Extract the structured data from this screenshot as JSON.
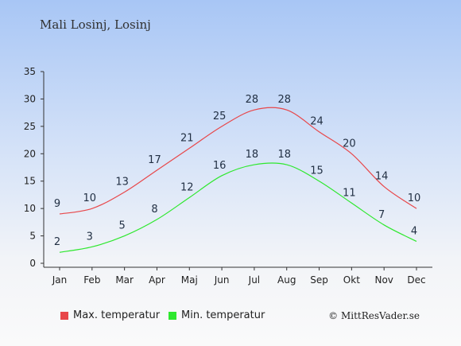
{
  "title": "Mali Losinj, Losinj",
  "credit": "© MittResVader.se",
  "chart_data": {
    "type": "line",
    "categories": [
      "Jan",
      "Feb",
      "Mar",
      "Apr",
      "Maj",
      "Jun",
      "Jul",
      "Aug",
      "Sep",
      "Okt",
      "Nov",
      "Dec"
    ],
    "series": [
      {
        "name": "Max. temperatur",
        "values": [
          9,
          10,
          13,
          17,
          21,
          25,
          28,
          28,
          24,
          20,
          14,
          10
        ],
        "color": "#e8474a"
      },
      {
        "name": "Min. temperatur",
        "values": [
          2,
          3,
          5,
          8,
          12,
          16,
          18,
          18,
          15,
          11,
          7,
          4
        ],
        "color": "#2ee82e"
      }
    ],
    "yticks": [
      0,
      5,
      10,
      15,
      20,
      25,
      30,
      35
    ],
    "ylim": [
      0,
      35
    ],
    "grid": false,
    "legend": "bottom"
  }
}
